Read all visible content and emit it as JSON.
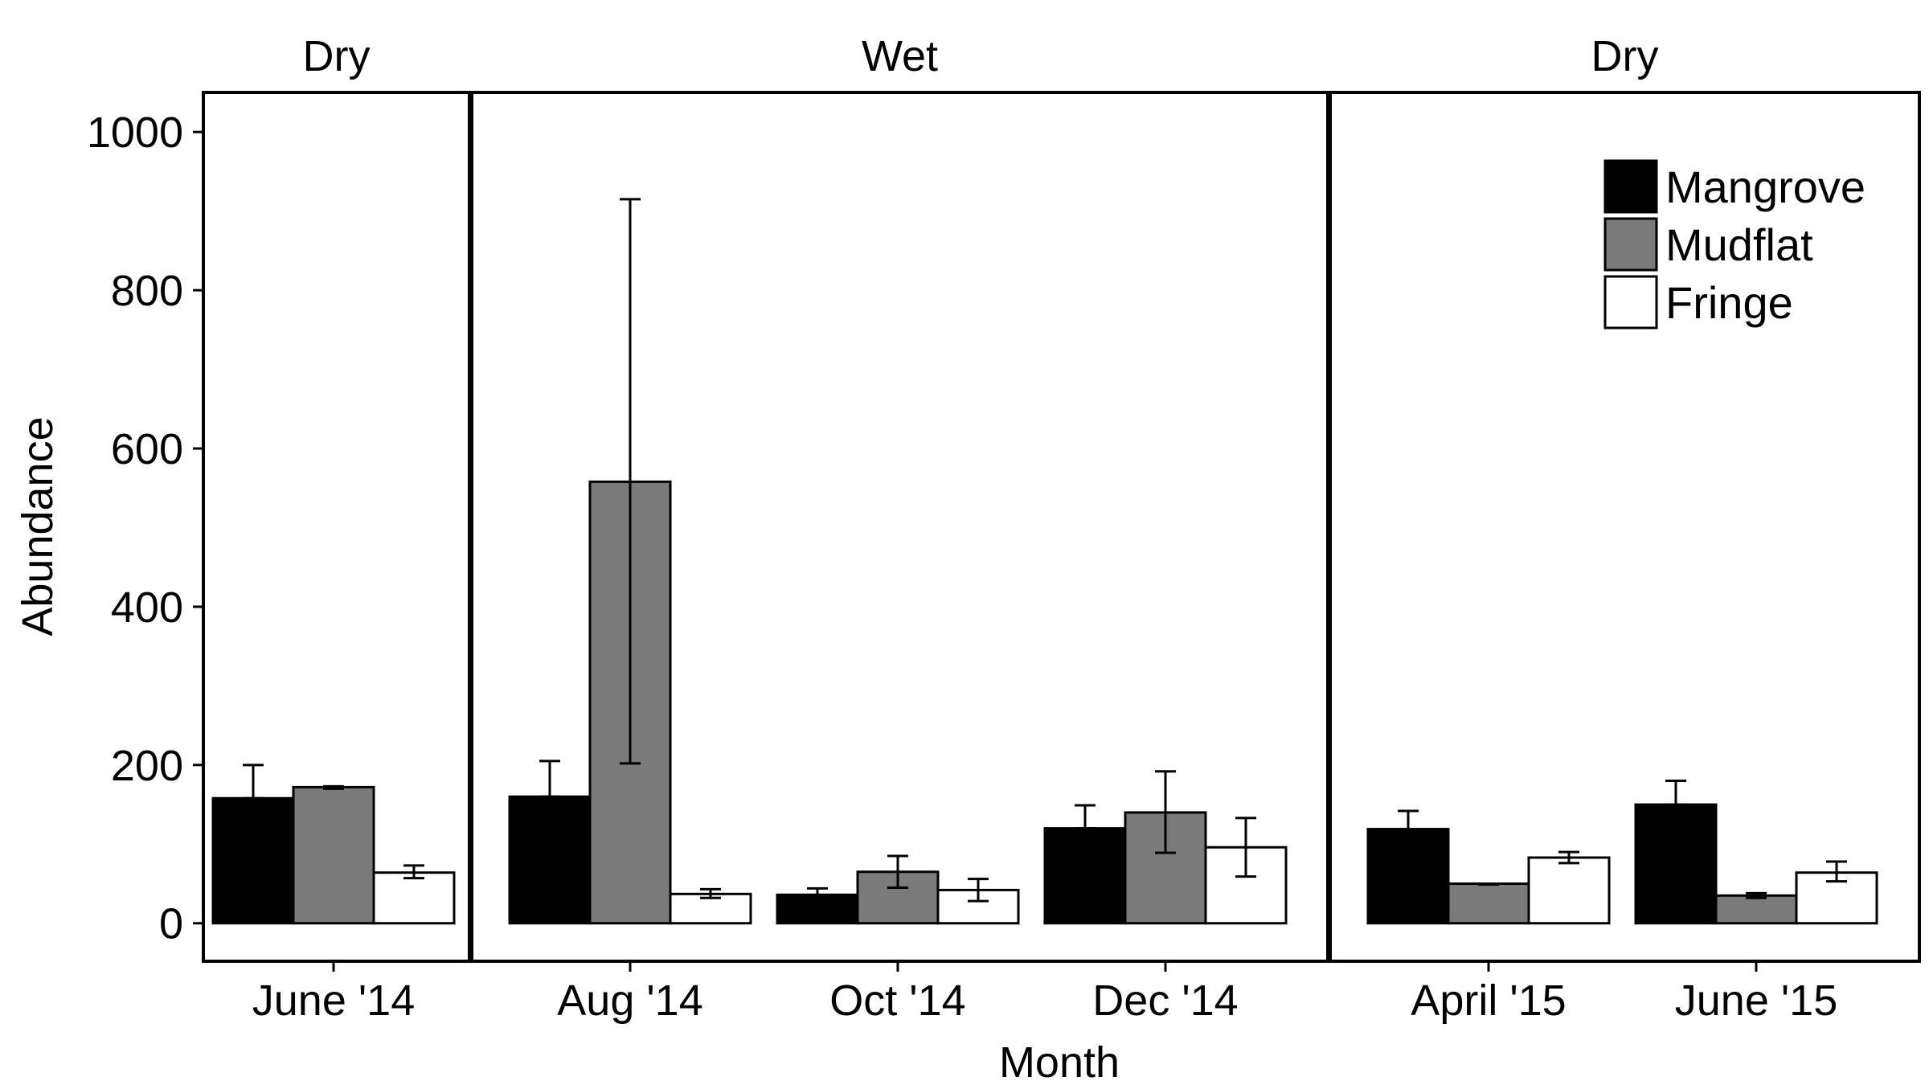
{
  "chart_data": {
    "type": "bar",
    "y_label": "Abundance",
    "x_label": "Month",
    "y_ticks": [
      0,
      200,
      400,
      600,
      800,
      1000
    ],
    "ylim": [
      -48,
      1050
    ],
    "series": [
      {
        "name": "Mangrove",
        "color": "#000000"
      },
      {
        "name": "Mudflat",
        "color": "#7a7a7a"
      },
      {
        "name": "Fringe",
        "color": "#ffffff"
      }
    ],
    "panels": [
      {
        "label": "Dry",
        "groups": [
          {
            "month": "June '14",
            "values": [
              158,
              172,
              64
            ],
            "err_low": [
              158,
              170,
              57
            ],
            "err_high": [
              200,
              173,
              73
            ]
          }
        ]
      },
      {
        "label": "Wet",
        "groups": [
          {
            "month": "Aug '14",
            "values": [
              160,
              558,
              37
            ],
            "err_low": [
              160,
              202,
              32
            ],
            "err_high": [
              205,
              915,
              43
            ]
          },
          {
            "month": "Oct '14",
            "values": [
              36,
              65,
              42
            ],
            "err_low": [
              34,
              45,
              28
            ],
            "err_high": [
              44,
              85,
              56
            ]
          },
          {
            "month": "Dec '14",
            "values": [
              120,
              140,
              96
            ],
            "err_low": [
              120,
              89,
              59
            ],
            "err_high": [
              149,
              192,
              133
            ]
          }
        ]
      },
      {
        "label": "Dry",
        "groups": [
          {
            "month": "April '15",
            "values": [
              119,
              50,
              83
            ],
            "err_low": [
              119,
              49,
              76
            ],
            "err_high": [
              142,
              50,
              90
            ]
          },
          {
            "month": "June '15",
            "values": [
              150,
              35,
              64
            ],
            "err_low": [
              150,
              32,
              53
            ],
            "err_high": [
              180,
              38,
              78
            ]
          }
        ]
      }
    ]
  }
}
